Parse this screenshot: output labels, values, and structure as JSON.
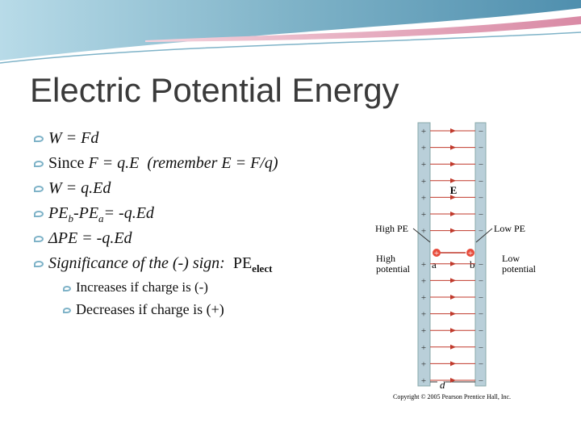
{
  "header": {
    "title": "Electric Potential Energy"
  },
  "bullets": [
    {
      "parts": [
        "W = Fd"
      ]
    },
    {
      "parts": [
        "Since",
        "F = q.E",
        "(remember E = F/q)"
      ]
    },
    {
      "parts": [
        "W = q.Ed"
      ]
    },
    {
      "parts": [
        "PE",
        "b",
        "-PE",
        "a",
        "= -q.Ed"
      ]
    },
    {
      "parts": [
        "ΔPE = -q.Ed"
      ]
    },
    {
      "parts": [
        "Significance of the (-) sign:",
        "PE",
        "elect"
      ]
    }
  ],
  "sub_bullets": [
    "Increases if charge is (-)",
    "Decreases if charge is (+)"
  ],
  "figure": {
    "high_pe": "High PE",
    "low_pe": "Low PE",
    "high_potential": [
      "High",
      "potential"
    ],
    "low_potential": [
      "Low",
      "potential"
    ],
    "point_a": "a",
    "point_b": "b",
    "field": "E",
    "distance": "d",
    "plus_sign": "+",
    "minus_sign": "−",
    "copyright": "Copyright © 2005 Pearson Prentice Hall, Inc."
  }
}
